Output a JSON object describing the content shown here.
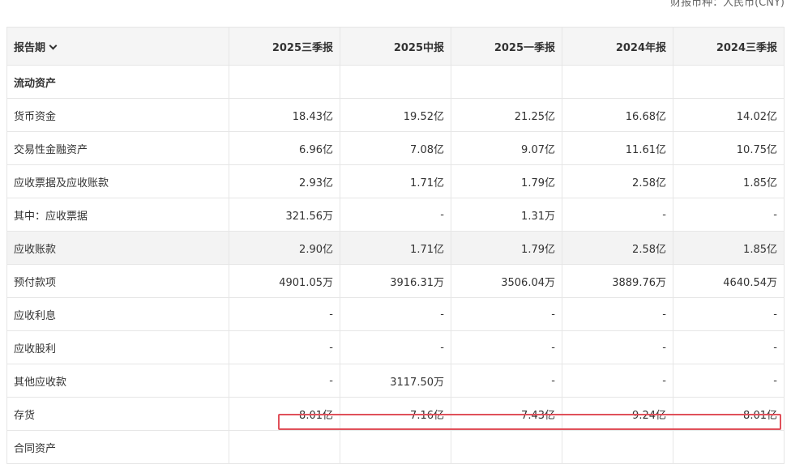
{
  "currency_label": "财报币种：人民币(CNY)",
  "header": {
    "first_col": "报告期",
    "periods": [
      "2025三季报",
      "2025中报",
      "2025一季报",
      "2024年报",
      "2024三季报"
    ]
  },
  "section_title": "流动资产",
  "rows": [
    {
      "label": "货币资金",
      "values": [
        "18.43亿",
        "19.52亿",
        "21.25亿",
        "16.68亿",
        "14.02亿"
      ]
    },
    {
      "label": "交易性金融资产",
      "values": [
        "6.96亿",
        "7.08亿",
        "9.07亿",
        "11.61亿",
        "10.75亿"
      ]
    },
    {
      "label": "应收票据及应收账款",
      "values": [
        "2.93亿",
        "1.71亿",
        "1.79亿",
        "2.58亿",
        "1.85亿"
      ]
    },
    {
      "label": "其中：应收票据",
      "values": [
        "321.56万",
        "-",
        "1.31万",
        "-",
        "-"
      ]
    },
    {
      "label": "应收账款",
      "values": [
        "2.90亿",
        "1.71亿",
        "1.79亿",
        "2.58亿",
        "1.85亿"
      ]
    },
    {
      "label": "预付款项",
      "values": [
        "4901.05万",
        "3916.31万",
        "3506.04万",
        "3889.76万",
        "4640.54万"
      ]
    },
    {
      "label": "应收利息",
      "values": [
        "-",
        "-",
        "-",
        "-",
        "-"
      ]
    },
    {
      "label": "应收股利",
      "values": [
        "-",
        "-",
        "-",
        "-",
        "-"
      ]
    },
    {
      "label": "其他应收款",
      "values": [
        "-",
        "3117.50万",
        "-",
        "-",
        "-"
      ]
    },
    {
      "label": "存货",
      "values": [
        "8.01亿",
        "7.16亿",
        "7.43亿",
        "9.24亿",
        "8.01亿"
      ]
    },
    {
      "label": "合同资产",
      "values": [
        "",
        "",
        "",
        "",
        ""
      ]
    }
  ],
  "highlight_color": "#e0505a"
}
